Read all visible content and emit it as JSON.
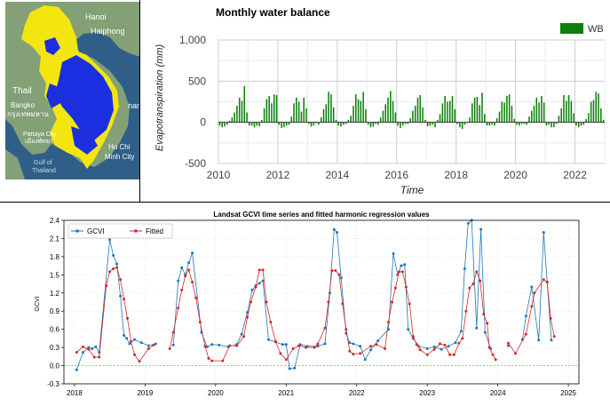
{
  "map": {
    "labels": {
      "hanoi": "Hanoi",
      "haiphong": "Haiphong",
      "thailand": "Thail",
      "bangkok": "Bangko",
      "bangkok_native": "กรุงเทพมหาน",
      "pattaya": "Pattaya City",
      "pattaya_native": "เมืองพัทยา",
      "hcmc_1": "Ho Chi",
      "hcmc_2": "Minh City",
      "gulf_1": "Gulf of",
      "gulf_2": "Thailand",
      "nam_fragment": "nam"
    },
    "colors": {
      "sea": "#2f5f89",
      "land": "#83a076",
      "basin_yellow": "#f3e60e",
      "basin_blue": "#1b2fe0"
    }
  },
  "wb_chart": {
    "title": "Monthly water balance",
    "xlabel": "Time",
    "ylabel": "Evapotranspiration (mm)",
    "legend": "WB",
    "bar_color": "#0b800b",
    "y_ticks": [
      "1,000",
      "500",
      "0",
      "-500"
    ],
    "x_ticks": [
      "2010",
      "2012",
      "2014",
      "2016",
      "2018",
      "2020",
      "2022"
    ]
  },
  "ts_chart": {
    "title": "Landsat GCVI time series and fitted harmonic regression values",
    "ylabel": "GCVI",
    "legend": {
      "gcvi": "GCVI",
      "fitted": "Fitted"
    },
    "gcvi_color": "#1f77b4",
    "fitted_color": "#d62728",
    "y_ticks": [
      "2.4",
      "2.1",
      "1.8",
      "1.5",
      "1.2",
      "0.9",
      "0.6",
      "0.3",
      "0.0",
      "-0.3"
    ],
    "x_ticks": [
      "2018",
      "2019",
      "2020",
      "2021",
      "2022",
      "2023",
      "2024",
      "2025"
    ]
  },
  "chart_data": [
    {
      "type": "bar",
      "title": "Monthly water balance",
      "xlabel": "Time",
      "ylabel": "Evapotranspiration (mm)",
      "legend": "top-right",
      "ylim": [
        -500,
        1000
      ],
      "xlim": [
        2010,
        2023
      ],
      "x_start": "2010-01",
      "series": [
        {
          "name": "WB",
          "values": [
            -40,
            -60,
            -50,
            -30,
            20,
            60,
            120,
            200,
            300,
            260,
            440,
            120,
            -40,
            -40,
            -60,
            -40,
            -50,
            30,
            170,
            280,
            320,
            230,
            340,
            330,
            -30,
            -70,
            -60,
            -40,
            -30,
            70,
            230,
            300,
            250,
            130,
            300,
            170,
            -20,
            -50,
            -40,
            -10,
            -30,
            60,
            160,
            220,
            370,
            340,
            180,
            30,
            -40,
            -50,
            -30,
            -20,
            30,
            80,
            200,
            340,
            280,
            260,
            370,
            160,
            -30,
            -60,
            -50,
            -20,
            -30,
            60,
            140,
            220,
            300,
            380,
            260,
            120,
            -40,
            -70,
            -40,
            -20,
            -20,
            50,
            140,
            200,
            300,
            330,
            180,
            30,
            -50,
            -40,
            -30,
            -60,
            30,
            100,
            230,
            320,
            250,
            260,
            320,
            160,
            -20,
            -60,
            -80,
            -30,
            -10,
            60,
            230,
            300,
            310,
            210,
            360,
            100,
            -40,
            -40,
            -30,
            -40,
            50,
            130,
            250,
            240,
            320,
            340,
            200,
            40,
            -30,
            -40,
            -20,
            -20,
            -30,
            70,
            140,
            200,
            300,
            240,
            320,
            240,
            -40,
            -30,
            -60,
            -60,
            -20,
            80,
            170,
            330,
            260,
            330,
            260,
            110,
            -40,
            -60,
            -40,
            -30,
            40,
            110,
            250,
            270,
            370,
            350,
            170,
            30
          ]
        }
      ]
    },
    {
      "type": "line",
      "title": "Landsat GCVI time series and fitted harmonic regression values",
      "ylabel": "GCVI",
      "legend": "top-left",
      "ylim": [
        -0.3,
        2.4
      ],
      "xlim": [
        2017.85,
        2025.15
      ],
      "series": [
        {
          "name": "GCVI",
          "points": [
            [
              2018.03,
              -0.07
            ],
            [
              2018.12,
              0.22
            ],
            [
              2018.2,
              0.3
            ],
            [
              2018.25,
              0.28
            ],
            [
              2018.3,
              0.31
            ],
            [
              2018.35,
              0.22
            ],
            [
              2018.5,
              2.08
            ],
            [
              2018.55,
              1.82
            ],
            [
              2018.6,
              1.68
            ],
            [
              2018.65,
              1.15
            ],
            [
              2018.7,
              0.5
            ],
            [
              2018.74,
              0.45
            ],
            [
              2018.78,
              0.36
            ],
            [
              2018.85,
              0.43
            ],
            [
              2018.95,
              0.38
            ],
            [
              2019.05,
              0.33
            ],
            [
              2019.15,
              0.36
            ],
            [
              2019.4,
              0.34
            ],
            [
              2019.47,
              1.4
            ],
            [
              2019.52,
              1.62
            ],
            [
              2019.57,
              1.5
            ],
            [
              2019.62,
              1.7
            ],
            [
              2019.67,
              1.86
            ],
            [
              2019.8,
              0.55
            ],
            [
              2019.88,
              0.31
            ],
            [
              2019.95,
              0.35
            ],
            [
              2020.05,
              0.34
            ],
            [
              2020.18,
              0.31
            ],
            [
              2020.3,
              0.35
            ],
            [
              2020.37,
              0.52
            ],
            [
              2020.45,
              0.88
            ],
            [
              2020.52,
              1.25
            ],
            [
              2020.57,
              1.32
            ],
            [
              2020.62,
              1.36
            ],
            [
              2020.67,
              1.4
            ],
            [
              2020.75,
              0.43
            ],
            [
              2020.85,
              0.39
            ],
            [
              2020.95,
              0.35
            ],
            [
              2021.0,
              0.35
            ],
            [
              2021.05,
              -0.05
            ],
            [
              2021.12,
              -0.04
            ],
            [
              2021.2,
              0.35
            ],
            [
              2021.3,
              0.32
            ],
            [
              2021.45,
              0.32
            ],
            [
              2021.55,
              0.36
            ],
            [
              2021.62,
              1.2
            ],
            [
              2021.68,
              2.25
            ],
            [
              2021.72,
              2.2
            ],
            [
              2021.78,
              1.45
            ],
            [
              2021.85,
              0.53
            ],
            [
              2021.9,
              0.38
            ],
            [
              2021.95,
              0.36
            ],
            [
              2022.05,
              0.32
            ],
            [
              2022.12,
              0.1
            ],
            [
              2022.2,
              0.26
            ],
            [
              2022.3,
              0.41
            ],
            [
              2022.45,
              0.6
            ],
            [
              2022.52,
              1.85
            ],
            [
              2022.58,
              1.5
            ],
            [
              2022.63,
              1.65
            ],
            [
              2022.68,
              1.67
            ],
            [
              2022.73,
              0.6
            ],
            [
              2022.8,
              0.45
            ],
            [
              2022.88,
              0.32
            ],
            [
              2023.0,
              0.28
            ],
            [
              2023.1,
              0.31
            ],
            [
              2023.2,
              0.27
            ],
            [
              2023.3,
              0.32
            ],
            [
              2023.4,
              0.38
            ],
            [
              2023.48,
              0.57
            ],
            [
              2023.53,
              1.6
            ],
            [
              2023.58,
              2.35
            ],
            [
              2023.63,
              2.4
            ],
            [
              2023.7,
              0.62
            ],
            [
              2023.76,
              2.25
            ],
            [
              2023.82,
              0.55
            ],
            [
              2023.9,
              0.28
            ],
            [
              2024.15,
              0.33
            ],
            [
              2024.35,
              0.43
            ],
            [
              2024.4,
              0.82
            ],
            [
              2024.48,
              1.3
            ],
            [
              2024.58,
              0.42
            ],
            [
              2024.65,
              2.2
            ],
            [
              2024.7,
              1.38
            ],
            [
              2024.76,
              0.42
            ]
          ]
        },
        {
          "name": "Fitted",
          "points": [
            [
              2018.03,
              0.22
            ],
            [
              2018.12,
              0.31
            ],
            [
              2018.2,
              0.27
            ],
            [
              2018.28,
              0.14
            ],
            [
              2018.35,
              0.14
            ],
            [
              2018.45,
              1.32
            ],
            [
              2018.5,
              1.55
            ],
            [
              2018.55,
              1.6
            ],
            [
              2018.6,
              1.62
            ],
            [
              2018.65,
              1.42
            ],
            [
              2018.7,
              1.1
            ],
            [
              2018.75,
              0.78
            ],
            [
              2018.8,
              0.4
            ],
            [
              2018.85,
              0.18
            ],
            [
              2018.92,
              0.07
            ],
            [
              2019.05,
              0.28
            ],
            [
              2019.12,
              0.34
            ],
            [
              2019.35,
              0.28
            ],
            [
              2019.4,
              0.55
            ],
            [
              2019.47,
              0.95
            ],
            [
              2019.52,
              1.25
            ],
            [
              2019.57,
              1.48
            ],
            [
              2019.62,
              1.58
            ],
            [
              2019.67,
              1.38
            ],
            [
              2019.72,
              1.12
            ],
            [
              2019.78,
              0.72
            ],
            [
              2019.85,
              0.32
            ],
            [
              2019.9,
              0.12
            ],
            [
              2019.95,
              0.08
            ],
            [
              2020.1,
              0.08
            ],
            [
              2020.2,
              0.33
            ],
            [
              2020.3,
              0.33
            ],
            [
              2020.4,
              0.48
            ],
            [
              2020.45,
              0.8
            ],
            [
              2020.5,
              1.05
            ],
            [
              2020.57,
              1.3
            ],
            [
              2020.62,
              1.58
            ],
            [
              2020.67,
              1.58
            ],
            [
              2020.72,
              1.05
            ],
            [
              2020.78,
              0.72
            ],
            [
              2020.85,
              0.4
            ],
            [
              2020.92,
              0.2
            ],
            [
              2021.0,
              0.1
            ],
            [
              2021.1,
              0.28
            ],
            [
              2021.18,
              0.33
            ],
            [
              2021.28,
              0.3
            ],
            [
              2021.4,
              0.3
            ],
            [
              2021.45,
              0.36
            ],
            [
              2021.55,
              0.62
            ],
            [
              2021.6,
              1.05
            ],
            [
              2021.65,
              1.57
            ],
            [
              2021.7,
              1.57
            ],
            [
              2021.75,
              1.5
            ],
            [
              2021.8,
              1.02
            ],
            [
              2021.85,
              0.6
            ],
            [
              2021.9,
              0.24
            ],
            [
              2021.95,
              0.19
            ],
            [
              2022.05,
              0.2
            ],
            [
              2022.2,
              0.32
            ],
            [
              2022.28,
              0.35
            ],
            [
              2022.4,
              0.28
            ],
            [
              2022.45,
              0.72
            ],
            [
              2022.5,
              1.05
            ],
            [
              2022.55,
              1.28
            ],
            [
              2022.6,
              1.55
            ],
            [
              2022.65,
              1.55
            ],
            [
              2022.7,
              1.3
            ],
            [
              2022.75,
              1.02
            ],
            [
              2022.8,
              0.48
            ],
            [
              2022.85,
              0.35
            ],
            [
              2022.9,
              0.26
            ],
            [
              2023.0,
              0.18
            ],
            [
              2023.1,
              0.27
            ],
            [
              2023.18,
              0.36
            ],
            [
              2023.25,
              0.34
            ],
            [
              2023.32,
              0.18
            ],
            [
              2023.38,
              0.18
            ],
            [
              2023.45,
              0.37
            ],
            [
              2023.5,
              0.45
            ],
            [
              2023.55,
              0.9
            ],
            [
              2023.6,
              1.28
            ],
            [
              2023.65,
              1.35
            ],
            [
              2023.7,
              1.55
            ],
            [
              2023.75,
              1.4
            ],
            [
              2023.8,
              0.85
            ],
            [
              2023.85,
              0.7
            ],
            [
              2023.88,
              0.3
            ],
            [
              2023.93,
              0.18
            ],
            [
              2023.97,
              0.1
            ],
            [
              2024.15,
              0.37
            ],
            [
              2024.25,
              0.2
            ],
            [
              2024.4,
              0.52
            ],
            [
              2024.48,
              0.98
            ],
            [
              2024.52,
              1.2
            ],
            [
              2024.65,
              1.42
            ],
            [
              2024.7,
              1.38
            ],
            [
              2024.75,
              0.78
            ],
            [
              2024.8,
              0.48
            ]
          ]
        }
      ]
    }
  ]
}
